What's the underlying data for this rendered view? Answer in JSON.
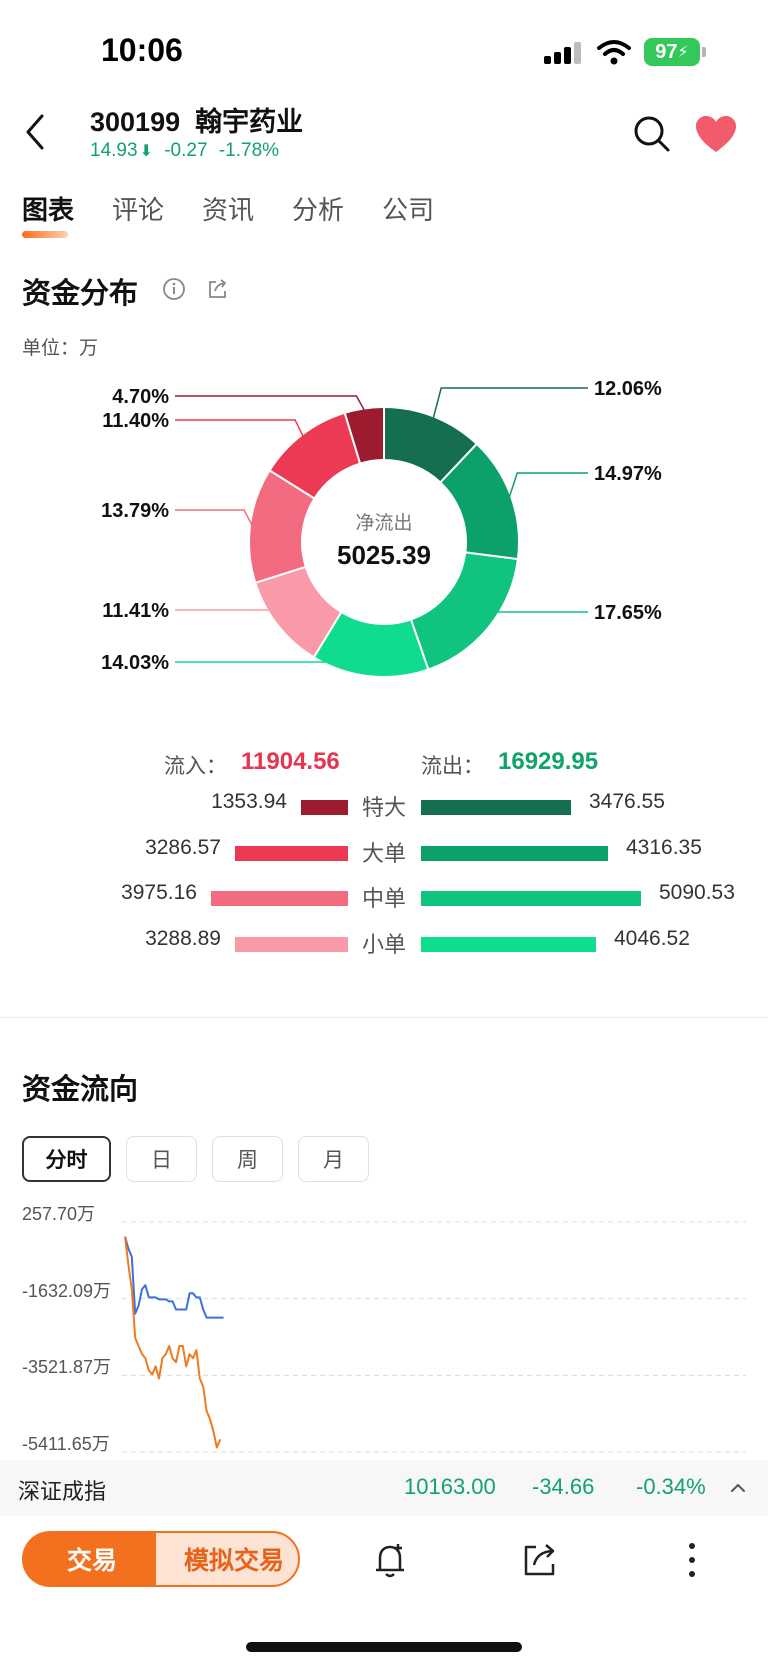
{
  "status": {
    "time": "10:06",
    "battery": "97"
  },
  "header": {
    "code": "300199",
    "name": "翰宇药业",
    "price": "14.93",
    "change": "-0.27",
    "change_pct": "-1.78%"
  },
  "tabs": [
    "图表",
    "评论",
    "资讯",
    "分析",
    "公司"
  ],
  "distribution": {
    "title": "资金分布",
    "unit": "单位：万",
    "center_label": "净流出",
    "center_value": "5025.39",
    "inflow_label": "流入：",
    "inflow_value": "11904.56",
    "outflow_label": "流出：",
    "outflow_value": "16929.95",
    "rows": [
      {
        "cat": "特大",
        "in": "1353.94",
        "out": "3476.55"
      },
      {
        "cat": "大单",
        "in": "3286.57",
        "out": "4316.35"
      },
      {
        "cat": "中单",
        "in": "3975.16",
        "out": "5090.53"
      },
      {
        "cat": "小单",
        "in": "3288.89",
        "out": "4046.52"
      }
    ],
    "colors": {
      "in": [
        "#9c1b2e",
        "#ec3a55",
        "#f26b80",
        "#fa9aa8"
      ],
      "out": [
        "#146e4f",
        "#0ca06b",
        "#10c47f",
        "#10dc8f"
      ]
    }
  },
  "chart_data": [
    {
      "type": "pie",
      "labels": [
        "12.06%",
        "14.97%",
        "17.65%",
        "14.03%",
        "11.41%",
        "13.79%",
        "11.40%",
        "4.70%"
      ],
      "values": [
        12.06,
        14.97,
        17.65,
        14.03,
        11.41,
        13.79,
        11.4,
        4.7
      ],
      "colors": [
        "#146e4f",
        "#0ca06b",
        "#10c47f",
        "#10dc8f",
        "#fa9aa8",
        "#f26b80",
        "#ec3a55",
        "#9c1b2e"
      ]
    },
    {
      "type": "line",
      "title": "资金流向",
      "y_ticks": [
        "257.70万",
        "-1632.09万",
        "-3521.87万",
        "-5411.65万"
      ],
      "ylim": [
        -5411.65,
        257.7
      ],
      "series": [
        {
          "color": "#3d6fe0",
          "x": [
            0,
            1,
            2,
            3,
            4,
            5,
            6,
            7,
            8,
            9,
            10,
            11,
            12,
            13,
            14,
            15,
            16,
            17,
            18,
            19,
            20,
            21,
            22,
            23,
            24,
            25,
            26,
            27,
            28,
            29
          ],
          "values": [
            -100,
            -400,
            -600,
            -2000,
            -1800,
            -1400,
            -1300,
            -1600,
            -1600,
            -1600,
            -1650,
            -1650,
            -1650,
            -1700,
            -1700,
            -1900,
            -1900,
            -1900,
            -1900,
            -1500,
            -1500,
            -1600,
            -1600,
            -1900,
            -2100,
            -2100,
            -2100,
            -2100,
            -2100,
            -2100
          ]
        },
        {
          "color": "#f07a1e",
          "x": [
            0,
            1,
            2,
            3,
            4,
            5,
            6,
            7,
            8,
            9,
            10,
            11,
            12,
            13,
            14,
            15,
            16,
            17,
            18,
            19,
            20,
            21,
            22,
            23,
            24,
            25,
            26,
            27,
            28
          ],
          "values": [
            -100,
            -800,
            -1400,
            -2600,
            -2800,
            -3000,
            -3100,
            -3400,
            -3500,
            -3300,
            -3600,
            -3100,
            -3000,
            -2800,
            -3100,
            -3200,
            -2800,
            -2800,
            -3300,
            -3000,
            -3100,
            -2900,
            -3600,
            -3800,
            -4400,
            -4600,
            -4900,
            -5300,
            -5100
          ]
        }
      ]
    }
  ],
  "flow": {
    "title": "资金流向",
    "periods": [
      "分时",
      "日",
      "周",
      "月"
    ]
  },
  "index": {
    "name": "深证成指",
    "value": "10163.00",
    "change": "-34.66",
    "change_pct": "-0.34%"
  },
  "toolbar": {
    "trade": "交易",
    "sim_trade": "模拟交易"
  }
}
